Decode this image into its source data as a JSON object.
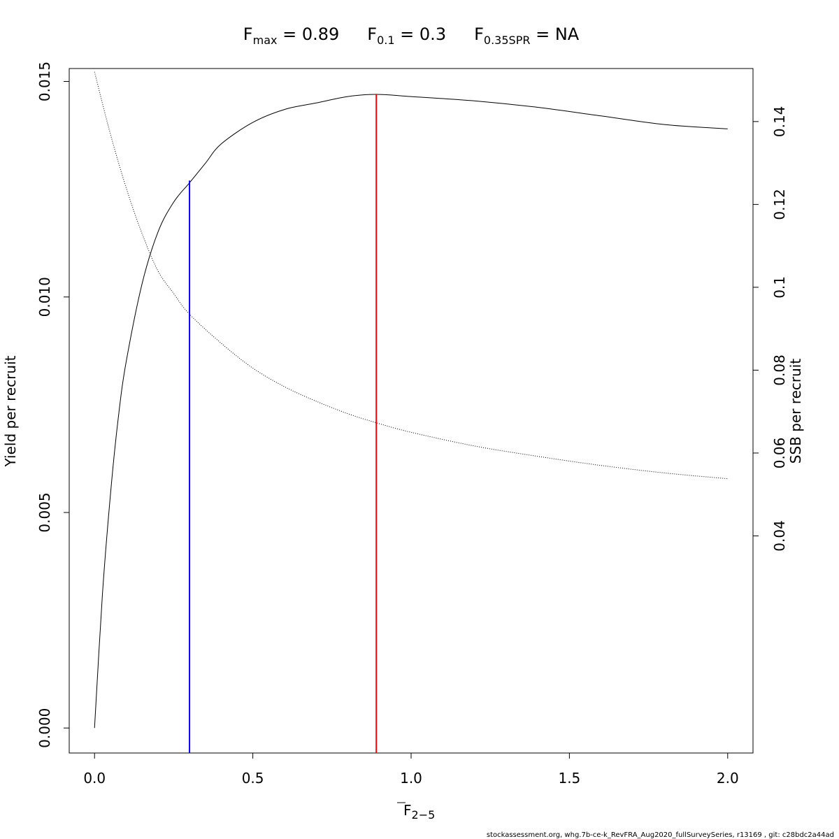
{
  "title": {
    "fmax": {
      "base": "F",
      "sub": "max",
      "rest": " = 0.89"
    },
    "f01": {
      "base": "F",
      "sub": "0.1",
      "rest": " = 0.3"
    },
    "f35": {
      "base": "F",
      "sub": "0.35SPR",
      "rest": " = NA"
    }
  },
  "xlabel": {
    "base": "F",
    "sub": "2−5"
  },
  "ylabel_left": "Yield per recruit",
  "ylabel_right": "SSB per recruit",
  "footer": "stockassessment.org, whg.7b-ce-k_RevFRA_Aug2020_fullSurveySeries, r13169 , git: c28bdc2a44ad",
  "chart_data": {
    "type": "line",
    "xlim": [
      -0.08,
      2.08
    ],
    "ylim_left": [
      -0.00058,
      0.0153
    ],
    "ylim_right": [
      -0.0124,
      0.1528
    ],
    "x_ticks": [
      "0.0",
      "0.5",
      "1.0",
      "1.5",
      "2.0"
    ],
    "x_tick_values": [
      0,
      0.5,
      1.0,
      1.5,
      2.0
    ],
    "y_left_ticks": [
      "0.000",
      "0.005",
      "0.010",
      "0.015"
    ],
    "y_left_tick_values": [
      0,
      0.005,
      0.01,
      0.015
    ],
    "y_right_ticks": [
      "0.04",
      "0.06",
      "0.08",
      "0.1",
      "0.12",
      "0.14"
    ],
    "y_right_tick_values": [
      0.04,
      0.06,
      0.08,
      0.1,
      0.12,
      0.14
    ],
    "series": [
      {
        "name": "Yield per recruit",
        "axis": "left",
        "line_style": "solid",
        "x": [
          0,
          0.025,
          0.05,
          0.075,
          0.1,
          0.15,
          0.2,
          0.25,
          0.3,
          0.35,
          0.4,
          0.5,
          0.6,
          0.7,
          0.8,
          0.89,
          1.0,
          1.2,
          1.4,
          1.6,
          1.8,
          2.0
        ],
        "y": [
          0,
          0.0031,
          0.0054,
          0.0072,
          0.0085,
          0.0103,
          0.0115,
          0.0122,
          0.01265,
          0.0131,
          0.01355,
          0.01405,
          0.01435,
          0.0145,
          0.01465,
          0.0147,
          0.01465,
          0.01455,
          0.0144,
          0.0142,
          0.014,
          0.0139
        ]
      },
      {
        "name": "SSB per recruit",
        "axis": "right",
        "line_style": "dotted",
        "x": [
          0,
          0.05,
          0.1,
          0.15,
          0.2,
          0.25,
          0.3,
          0.4,
          0.5,
          0.6,
          0.7,
          0.8,
          0.89,
          1.0,
          1.2,
          1.4,
          1.6,
          1.8,
          2.0
        ],
        "y": [
          0.152,
          0.137,
          0.124,
          0.113,
          0.104,
          0.0985,
          0.0935,
          0.0865,
          0.0805,
          0.076,
          0.0725,
          0.0695,
          0.0673,
          0.065,
          0.0617,
          0.0592,
          0.057,
          0.0552,
          0.0538
        ]
      }
    ],
    "reference_lines": [
      {
        "name": "F0.1",
        "x": 0.3,
        "y_top": 0.0127,
        "color": "#0000ff"
      },
      {
        "name": "Fmax",
        "x": 0.89,
        "y_top": 0.0147,
        "color": "#ff0000"
      }
    ],
    "grid": false
  }
}
